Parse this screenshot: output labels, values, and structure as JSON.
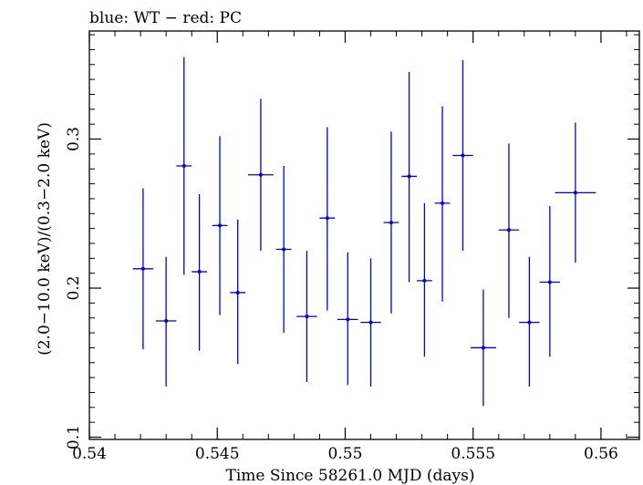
{
  "chart_data": {
    "type": "scatter",
    "title": "blue: WT − red: PC",
    "xlabel": "Time Since 58261.0 MJD (days)",
    "ylabel": "(2.0−10.0 keV)/(0.3−2.0 keV)",
    "xlim": [
      0.54,
      0.5615
    ],
    "ylim": [
      0.0985,
      0.3725
    ],
    "x_ticks": [
      {
        "value": 0.54,
        "label": "0.54"
      },
      {
        "value": 0.545,
        "label": "0.545"
      },
      {
        "value": 0.55,
        "label": "0.55"
      },
      {
        "value": 0.555,
        "label": "0.555"
      },
      {
        "value": 0.56,
        "label": "0.56"
      }
    ],
    "y_ticks": [
      {
        "value": 0.1,
        "label": "0.1"
      },
      {
        "value": 0.2,
        "label": "0.2"
      },
      {
        "value": 0.3,
        "label": "0.3"
      }
    ],
    "x_minor_step": 0.001,
    "y_minor_step": 0.01,
    "series": [
      {
        "color": "#0000e0",
        "points": [
          {
            "x": 0.5421,
            "xerr": 0.0004,
            "y": 0.213,
            "ylo": 0.159,
            "yhi": 0.267
          },
          {
            "x": 0.543,
            "xerr": 0.0004,
            "y": 0.178,
            "ylo": 0.134,
            "yhi": 0.221
          },
          {
            "x": 0.5437,
            "xerr": 0.0003,
            "y": 0.282,
            "ylo": 0.209,
            "yhi": 0.355
          },
          {
            "x": 0.5443,
            "xerr": 0.0003,
            "y": 0.211,
            "ylo": 0.158,
            "yhi": 0.263
          },
          {
            "x": 0.5451,
            "xerr": 0.0003,
            "y": 0.242,
            "ylo": 0.182,
            "yhi": 0.302
          },
          {
            "x": 0.5458,
            "xerr": 0.0003,
            "y": 0.197,
            "ylo": 0.149,
            "yhi": 0.246
          },
          {
            "x": 0.5467,
            "xerr": 0.0005,
            "y": 0.276,
            "ylo": 0.225,
            "yhi": 0.327
          },
          {
            "x": 0.5476,
            "xerr": 0.0003,
            "y": 0.226,
            "ylo": 0.17,
            "yhi": 0.282
          },
          {
            "x": 0.5485,
            "xerr": 0.0004,
            "y": 0.181,
            "ylo": 0.137,
            "yhi": 0.225
          },
          {
            "x": 0.5493,
            "xerr": 0.0003,
            "y": 0.247,
            "ylo": 0.185,
            "yhi": 0.308
          },
          {
            "x": 0.5501,
            "xerr": 0.0004,
            "y": 0.179,
            "ylo": 0.135,
            "yhi": 0.224
          },
          {
            "x": 0.551,
            "xerr": 0.0004,
            "y": 0.177,
            "ylo": 0.134,
            "yhi": 0.22
          },
          {
            "x": 0.5518,
            "xerr": 0.0003,
            "y": 0.244,
            "ylo": 0.183,
            "yhi": 0.305
          },
          {
            "x": 0.5525,
            "xerr": 0.0003,
            "y": 0.275,
            "ylo": 0.204,
            "yhi": 0.345
          },
          {
            "x": 0.5531,
            "xerr": 0.0003,
            "y": 0.205,
            "ylo": 0.154,
            "yhi": 0.257
          },
          {
            "x": 0.5538,
            "xerr": 0.0003,
            "y": 0.257,
            "ylo": 0.191,
            "yhi": 0.322
          },
          {
            "x": 0.5546,
            "xerr": 0.0004,
            "y": 0.289,
            "ylo": 0.225,
            "yhi": 0.353
          },
          {
            "x": 0.5554,
            "xerr": 0.0005,
            "y": 0.16,
            "ylo": 0.121,
            "yhi": 0.199
          },
          {
            "x": 0.5564,
            "xerr": 0.0004,
            "y": 0.239,
            "ylo": 0.18,
            "yhi": 0.297
          },
          {
            "x": 0.5572,
            "xerr": 0.0004,
            "y": 0.177,
            "ylo": 0.134,
            "yhi": 0.221
          },
          {
            "x": 0.558,
            "xerr": 0.0004,
            "y": 0.204,
            "ylo": 0.154,
            "yhi": 0.255
          },
          {
            "x": 0.559,
            "xerr": 0.0008,
            "y": 0.264,
            "ylo": 0.217,
            "yhi": 0.311
          }
        ]
      }
    ]
  }
}
